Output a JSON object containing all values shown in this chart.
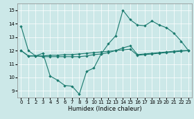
{
  "xlabel": "Humidex (Indice chaleur)",
  "xlim": [
    -0.5,
    23.5
  ],
  "ylim": [
    8.5,
    15.5
  ],
  "yticks": [
    9,
    10,
    11,
    12,
    13,
    14,
    15
  ],
  "xticks": [
    0,
    1,
    2,
    3,
    4,
    5,
    6,
    7,
    8,
    9,
    10,
    11,
    12,
    13,
    14,
    15,
    16,
    17,
    18,
    19,
    20,
    21,
    22,
    23
  ],
  "bg_color": "#cce8e8",
  "line_color": "#1a7a6e",
  "line1_y": [
    13.8,
    12.0,
    11.6,
    11.8,
    10.1,
    9.8,
    9.4,
    9.35,
    8.75,
    10.45,
    10.7,
    11.75,
    12.5,
    13.1,
    15.0,
    14.3,
    13.9,
    13.85,
    14.2,
    13.9,
    13.7,
    13.3,
    12.7,
    12.0
  ],
  "line2_y": [
    12.0,
    11.6,
    11.6,
    11.55,
    11.55,
    11.55,
    11.55,
    11.55,
    11.55,
    11.6,
    11.7,
    11.75,
    11.85,
    12.0,
    12.2,
    12.35,
    11.7,
    11.75,
    11.8,
    11.85,
    11.9,
    11.95,
    12.0,
    12.0
  ],
  "line3_y": [
    12.0,
    11.6,
    11.6,
    11.6,
    11.65,
    11.65,
    11.7,
    11.7,
    11.75,
    11.8,
    11.85,
    11.9,
    11.95,
    12.0,
    12.05,
    12.1,
    11.65,
    11.7,
    11.75,
    11.8,
    11.85,
    11.9,
    11.95,
    12.0
  ]
}
